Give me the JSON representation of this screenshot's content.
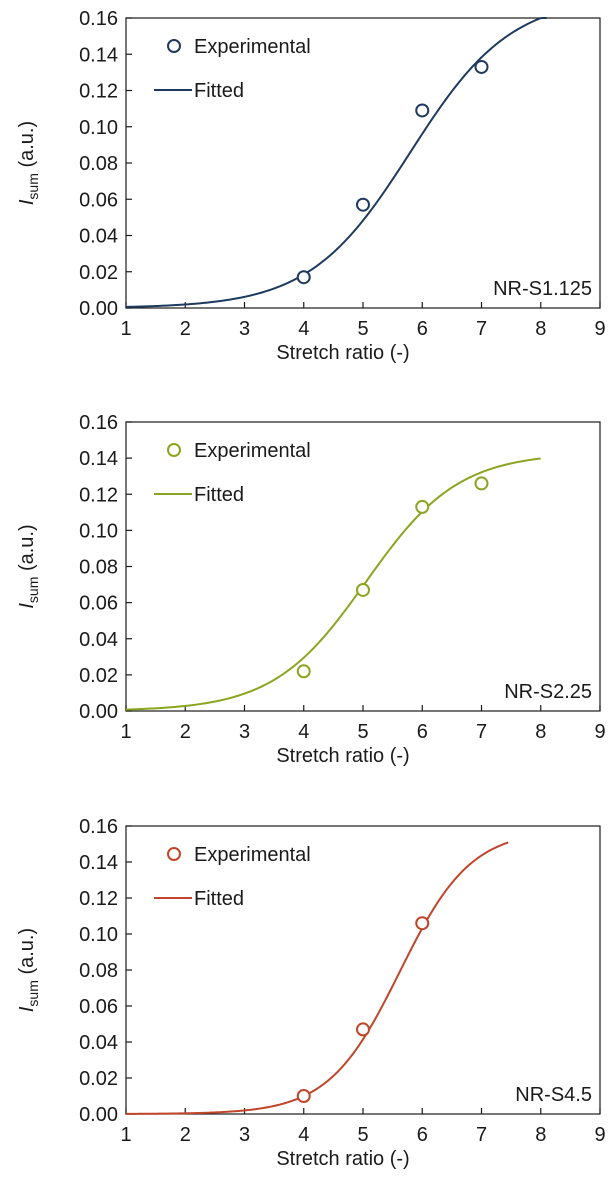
{
  "chart_data": [
    {
      "type": "line",
      "panel_label": "NR-S1.125",
      "xlabel": "Stretch ratio (-)",
      "ylabel_main": "I",
      "ylabel_sub": "sum",
      "ylabel_unit": " (a.u.)",
      "xlim": [
        1,
        9
      ],
      "ylim": [
        0,
        0.16
      ],
      "xticks": [
        "1",
        "2",
        "3",
        "4",
        "5",
        "6",
        "7",
        "8",
        "9"
      ],
      "yticks": [
        "0.00",
        "0.02",
        "0.04",
        "0.06",
        "0.08",
        "0.10",
        "0.12",
        "0.14",
        "0.16"
      ],
      "grid": false,
      "legend_position": "top-left",
      "color": "#1f3a5f",
      "series": [
        {
          "name": "Experimental",
          "kind": "markers",
          "x": [
            4,
            5,
            6,
            7
          ],
          "y": [
            0.017,
            0.057,
            0.109,
            0.133
          ]
        },
        {
          "name": "Fitted",
          "kind": "line",
          "sigmoid": {
            "amplitude": 0.172,
            "center": 5.8,
            "width": 0.85
          },
          "x_range": [
            1,
            8.1
          ]
        }
      ]
    },
    {
      "type": "line",
      "panel_label": "NR-S2.25",
      "xlabel": "Stretch ratio (-)",
      "ylabel_main": "I",
      "ylabel_sub": "sum",
      "ylabel_unit": " (a.u.)",
      "xlim": [
        1,
        9
      ],
      "ylim": [
        0,
        0.16
      ],
      "xticks": [
        "1",
        "2",
        "3",
        "4",
        "5",
        "6",
        "7",
        "8",
        "9"
      ],
      "yticks": [
        "0.00",
        "0.02",
        "0.04",
        "0.06",
        "0.08",
        "0.10",
        "0.12",
        "0.14",
        "0.16"
      ],
      "grid": false,
      "legend_position": "top-left",
      "color": "#8aa51f",
      "series": [
        {
          "name": "Experimental",
          "kind": "markers",
          "x": [
            4,
            5,
            6,
            7
          ],
          "y": [
            0.022,
            0.067,
            0.113,
            0.126
          ]
        },
        {
          "name": "Fitted",
          "kind": "line",
          "sigmoid": {
            "amplitude": 0.143,
            "center": 5.05,
            "width": 0.78
          },
          "x_range": [
            1,
            8
          ]
        }
      ]
    },
    {
      "type": "line",
      "panel_label": "NR-S4.5",
      "xlabel": "Stretch ratio (-)",
      "ylabel_main": "I",
      "ylabel_sub": "sum",
      "ylabel_unit": " (a.u.)",
      "xlim": [
        1,
        9
      ],
      "ylim": [
        0,
        0.16
      ],
      "xticks": [
        "1",
        "2",
        "3",
        "4",
        "5",
        "6",
        "7",
        "8",
        "9"
      ],
      "yticks": [
        "0.00",
        "0.02",
        "0.04",
        "0.06",
        "0.08",
        "0.10",
        "0.12",
        "0.14",
        "0.16"
      ],
      "grid": false,
      "legend_position": "top-left",
      "color": "#c0452a",
      "series": [
        {
          "name": "Experimental",
          "kind": "markers",
          "x": [
            4,
            5,
            6
          ],
          "y": [
            0.01,
            0.047,
            0.106
          ]
        },
        {
          "name": "Fitted",
          "kind": "line",
          "sigmoid": {
            "amplitude": 0.158,
            "center": 5.62,
            "width": 0.6
          },
          "x_range": [
            1,
            7.45
          ]
        }
      ]
    }
  ]
}
